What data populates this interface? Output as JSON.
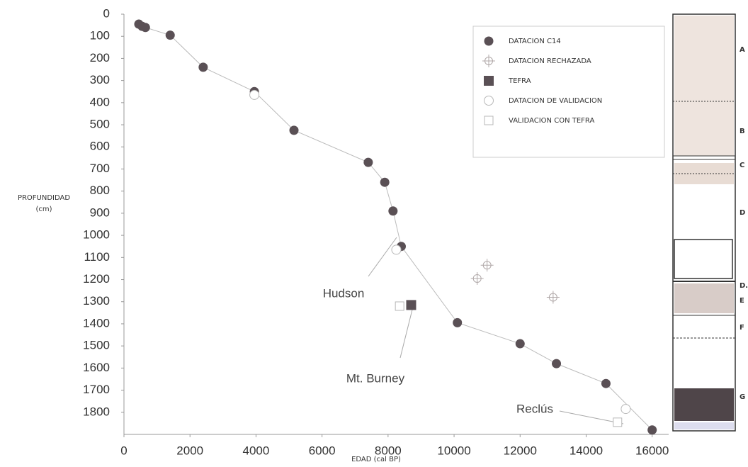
{
  "chart_data": {
    "type": "scatter",
    "x_label": "EDAD (cal BP)",
    "y_label": [
      "PROFUNDIDAD",
      "(cm)"
    ],
    "xlim": [
      0,
      16500
    ],
    "xticks": [
      0,
      2000,
      4000,
      6000,
      8000,
      10000,
      12000,
      14000,
      16000
    ],
    "ylim": [
      0,
      1900
    ],
    "y_reversed": true,
    "yticks": [
      0,
      100,
      200,
      300,
      400,
      500,
      600,
      700,
      800,
      900,
      1000,
      1100,
      1200,
      1300,
      1400,
      1500,
      1600,
      1700,
      1800
    ],
    "series": [
      {
        "name": "DATACION C14",
        "color": "#5a5055",
        "marker": "circle",
        "connected": true,
        "x": [
          450,
          550,
          650,
          1400,
          2400,
          3950,
          5150,
          7400,
          7900,
          8150,
          8400,
          10100,
          12000,
          13100,
          14600,
          16000
        ],
        "values": [
          45,
          55,
          60,
          95,
          240,
          350,
          525,
          670,
          760,
          890,
          1050,
          1395,
          1490,
          1580,
          1670,
          1880
        ]
      },
      {
        "name": "DATACION RECHAZADA",
        "color": "#b0a8a8",
        "marker": "cross-circle",
        "x": [
          10700,
          11000,
          13000
        ],
        "values": [
          1195,
          1135,
          1280
        ]
      },
      {
        "name": "TEFRA",
        "color": "#5a5055",
        "marker": "square",
        "x": [
          8700
        ],
        "values": [
          1315
        ]
      },
      {
        "name": "DATACION DE VALIDACION",
        "color": "#b8b8b8",
        "marker": "open-circle",
        "x": [
          3950,
          8250,
          15200
        ],
        "values": [
          365,
          1065,
          1785
        ]
      },
      {
        "name": "VALIDACION CON TEFRA",
        "color": "#b8b8b8",
        "marker": "open-square",
        "x": [
          8350,
          14950
        ],
        "values": [
          1320,
          1845
        ]
      }
    ],
    "annotations": [
      "Hudson",
      "Mt. Burney",
      "Reclús"
    ],
    "column_labels": [
      "A",
      "B",
      "C",
      "D",
      "D.",
      "E",
      "F",
      "G"
    ]
  }
}
